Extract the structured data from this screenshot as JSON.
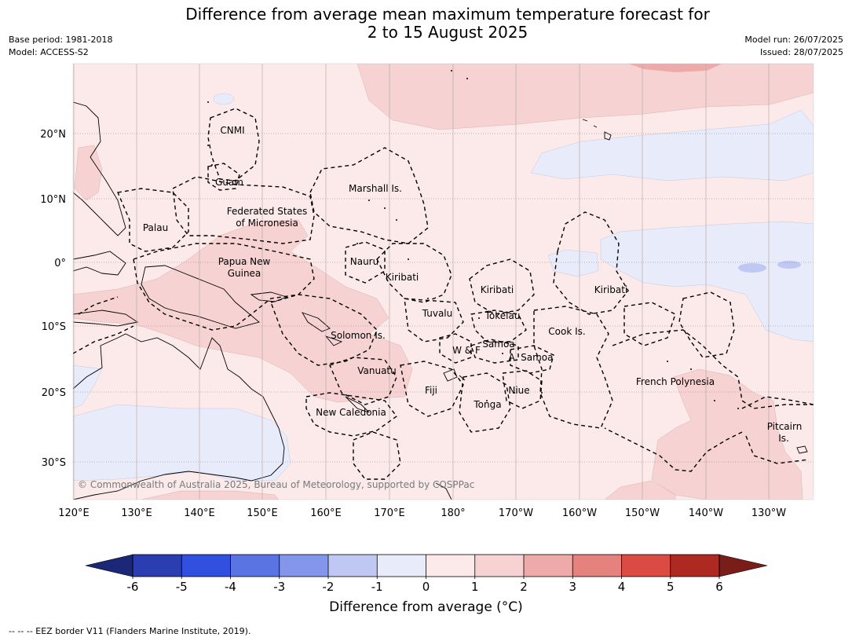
{
  "title": {
    "line1": "Difference from average mean maximum temperature forecast for",
    "line2": "2 to 15 August 2025"
  },
  "meta": {
    "base_period": "Base period: 1981-2018",
    "model": "Model: ACCESS-S2",
    "model_run": "Model run: 26/07/2025",
    "issued": "Issued: 28/07/2025"
  },
  "map": {
    "credit": "© Commonwealth of Australia 2025, Bureau of Meteorology, supported by COSPPac",
    "lon_ticks": [
      "120°E",
      "130°E",
      "140°E",
      "150°E",
      "160°E",
      "170°E",
      "180°",
      "170°W",
      "160°W",
      "150°W",
      "140°W",
      "130°W"
    ],
    "lat_ticks": [
      "20°N",
      "10°N",
      "0°",
      "10°S",
      "20°S",
      "30°S"
    ],
    "regions": [
      "CNMI",
      "Guam",
      "Marshall Is.",
      "Federated States",
      "of Micronesia",
      "Palau",
      "Papua New",
      "Guinea",
      "Nauru",
      "Kiribati",
      "Kiribati",
      "Kiribati",
      "Tuvalu",
      "Tokelau",
      "Solomon Is.",
      "Samoa",
      "W & F",
      "A. Samoa",
      "Cook Is.",
      "Vanuatu",
      "Fiji",
      "Niue",
      "Tonga",
      "French Polynesia",
      "New Caledonia",
      "Pitcairn",
      "Is."
    ]
  },
  "colorbar": {
    "ticks": [
      "-6",
      "-5",
      "-4",
      "-3",
      "-2",
      "-1",
      "0",
      "1",
      "2",
      "3",
      "4",
      "5",
      "6"
    ],
    "colors": [
      "#2a3eb1",
      "#3150e0",
      "#5a74e4",
      "#8496ea",
      "#bfc8f3",
      "#e8ebfa",
      "#fbeae9",
      "#f6d3d2",
      "#edaaa8",
      "#e5827e",
      "#dc4b43",
      "#ad2922"
    ],
    "under_color": "#1b2878",
    "over_color": "#7a1c18",
    "label": "Difference from average (°C)"
  },
  "footer": "-- -- -- EEZ border V11 (Flanders Marine Institute, 2019)."
}
